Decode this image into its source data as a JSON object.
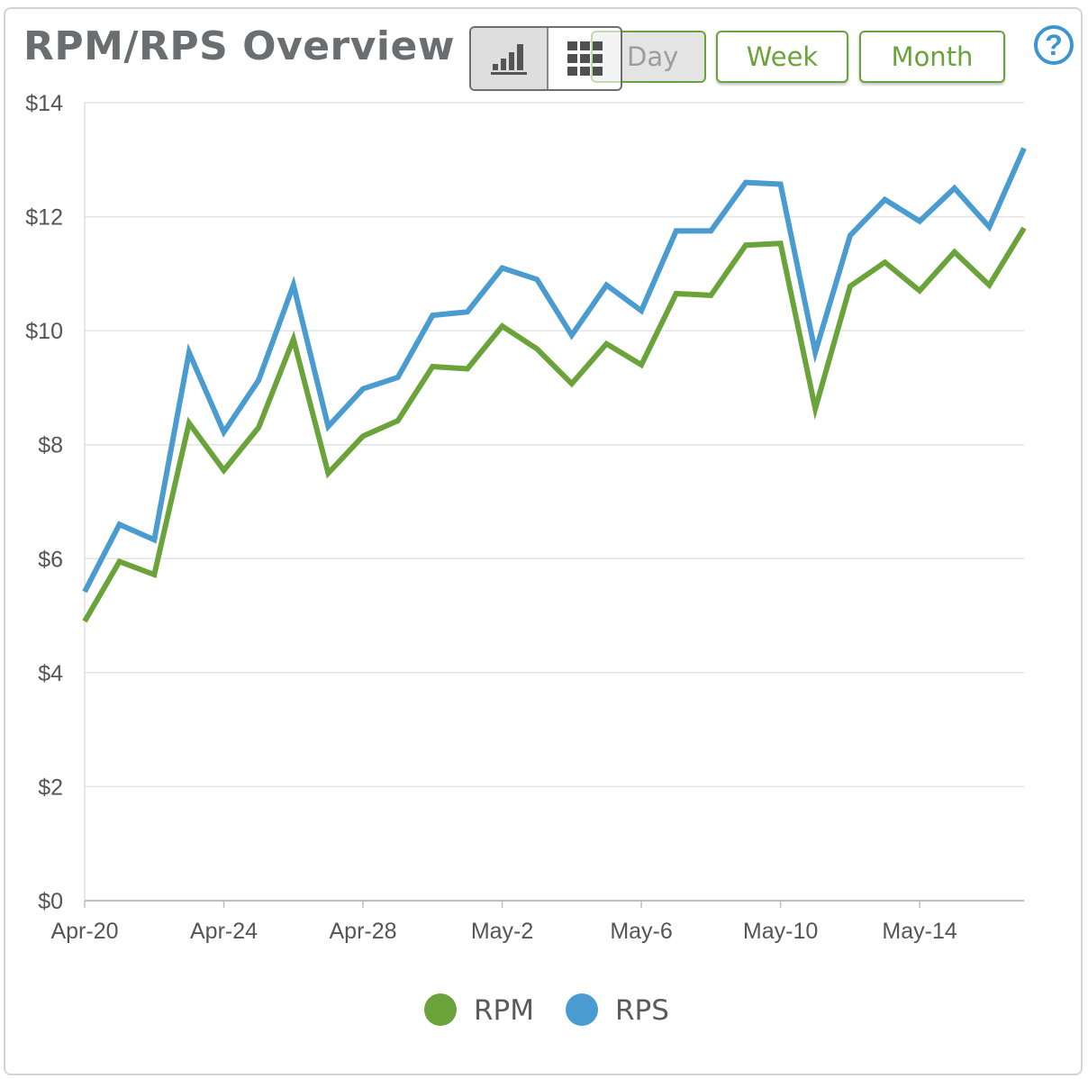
{
  "widget": {
    "title": "RPM/RPS Overview",
    "view_toggle": {
      "chart_icon": "bar-chart-icon",
      "table_icon": "grid-icon",
      "selected": "chart"
    },
    "periods": [
      "Day",
      "Week",
      "Month"
    ],
    "selected_period": "Day",
    "help_icon": "question-circle-icon",
    "help_symbol": "?"
  },
  "colors": {
    "rpm": "#6aa33a",
    "rps": "#4a9bd0",
    "grid": "#e3e3e3",
    "accent": "#6aa33a"
  },
  "chart_data": {
    "type": "line",
    "title": "",
    "xlabel": "",
    "ylabel": "",
    "x": [
      "Apr-20",
      "Apr-21",
      "Apr-22",
      "Apr-23",
      "Apr-24",
      "Apr-25",
      "Apr-26",
      "Apr-27",
      "Apr-28",
      "Apr-29",
      "Apr-30",
      "May-1",
      "May-2",
      "May-3",
      "May-4",
      "May-5",
      "May-6",
      "May-7",
      "May-8",
      "May-9",
      "May-10",
      "May-11",
      "May-12",
      "May-13",
      "May-14",
      "May-15",
      "May-16",
      "May-17"
    ],
    "x_tick_labels": [
      "Apr-20",
      "Apr-24",
      "Apr-28",
      "May-2",
      "May-6",
      "May-10",
      "May-14"
    ],
    "ylim": [
      0,
      14
    ],
    "y_tick_labels": [
      "$0",
      "$2",
      "$4",
      "$6",
      "$8",
      "$10",
      "$12",
      "$14"
    ],
    "y_ticks": [
      0,
      2,
      4,
      6,
      8,
      10,
      12,
      14
    ],
    "grid": true,
    "legend_position": "bottom-center",
    "series": [
      {
        "name": "RPM",
        "color": "#6aa33a",
        "values": [
          4.9,
          5.95,
          5.72,
          8.38,
          7.55,
          8.3,
          9.85,
          7.5,
          8.15,
          8.42,
          9.37,
          9.33,
          10.08,
          9.68,
          9.07,
          9.77,
          9.4,
          10.65,
          10.62,
          11.5,
          11.53,
          8.63,
          10.78,
          11.2,
          10.7,
          11.38,
          10.8,
          11.8
        ]
      },
      {
        "name": "RPS",
        "color": "#4a9bd0",
        "values": [
          5.42,
          6.6,
          6.33,
          9.62,
          8.22,
          9.13,
          10.8,
          8.32,
          8.98,
          9.18,
          10.27,
          10.33,
          11.1,
          10.9,
          9.92,
          10.8,
          10.35,
          11.75,
          11.75,
          12.6,
          12.57,
          9.62,
          11.67,
          12.3,
          11.92,
          12.5,
          11.82,
          13.2
        ]
      }
    ]
  }
}
